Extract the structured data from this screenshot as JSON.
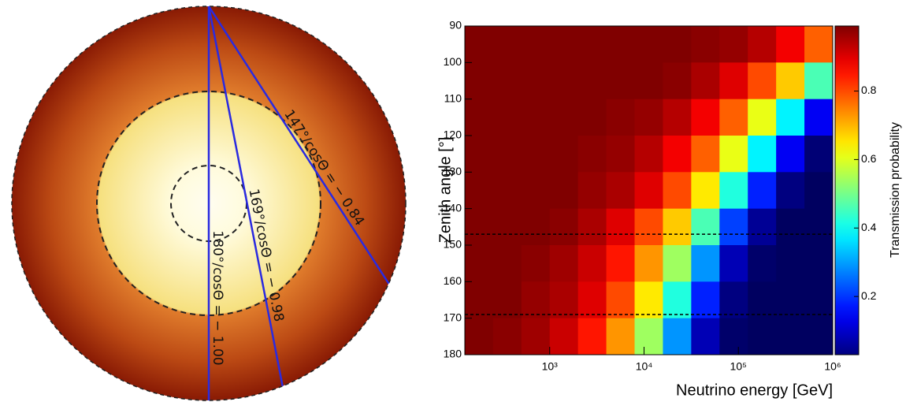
{
  "chart_data": [
    {
      "type": "earth",
      "chords": [
        {
          "zenith": 147,
          "label": "147°/cosΘ = − 0.84"
        },
        {
          "zenith": 169,
          "label": "169°/cosΘ = − 0.98"
        },
        {
          "zenith": 180,
          "label": "180°/cosΘ = − 1.00"
        }
      ],
      "chord_color": "#2a2ae0"
    },
    {
      "type": "heatmap",
      "xlabel": "Neutrino energy [GeV]",
      "ylabel": "Zenith angle [°]",
      "colorbar_label": "Transmission probability",
      "xscale": "log",
      "xlim": [
        126,
        1000000
      ],
      "xticks": [
        {
          "value": 1000,
          "label": "10³"
        },
        {
          "value": 10000,
          "label": "10⁴"
        },
        {
          "value": 100000,
          "label": "10⁵"
        },
        {
          "value": 1000000,
          "label": "10⁶"
        }
      ],
      "ylim": [
        90,
        180
      ],
      "y_inverted": true,
      "yticks": [
        90,
        100,
        110,
        120,
        130,
        140,
        150,
        160,
        170,
        180
      ],
      "clim": [
        0.03,
        0.99
      ],
      "cticks": [
        0.2,
        0.4,
        0.6,
        0.8
      ],
      "colormap": "jet",
      "xbins": [
        126,
        251,
        501,
        1000,
        1995,
        3981,
        7943,
        15849,
        31623,
        63096,
        125893,
        251189,
        501187,
        1000000
      ],
      "ybins": [
        90,
        100,
        110,
        120,
        130,
        140,
        150,
        160,
        170,
        180
      ],
      "values": [
        [
          0.99,
          0.99,
          0.99,
          0.99,
          0.99,
          0.99,
          0.99,
          0.99,
          0.98,
          0.97,
          0.94,
          0.88,
          0.78
        ],
        [
          0.99,
          0.99,
          0.99,
          0.99,
          0.99,
          0.99,
          0.99,
          0.98,
          0.95,
          0.9,
          0.8,
          0.68,
          0.46
        ],
        [
          0.99,
          0.99,
          0.99,
          0.99,
          0.99,
          0.98,
          0.97,
          0.94,
          0.88,
          0.78,
          0.61,
          0.38,
          0.14
        ],
        [
          0.99,
          0.99,
          0.99,
          0.99,
          0.98,
          0.97,
          0.94,
          0.88,
          0.78,
          0.61,
          0.38,
          0.14,
          0.02
        ],
        [
          0.99,
          0.99,
          0.99,
          0.99,
          0.97,
          0.95,
          0.9,
          0.8,
          0.65,
          0.42,
          0.18,
          0.03,
          0
        ],
        [
          0.99,
          0.99,
          0.99,
          0.98,
          0.95,
          0.9,
          0.8,
          0.68,
          0.46,
          0.21,
          0.05,
          0,
          0
        ],
        [
          0.99,
          0.99,
          0.98,
          0.96,
          0.92,
          0.85,
          0.73,
          0.54,
          0.29,
          0.08,
          0.01,
          0,
          0
        ],
        [
          0.99,
          0.99,
          0.97,
          0.95,
          0.9,
          0.8,
          0.65,
          0.42,
          0.18,
          0.03,
          0,
          0,
          0
        ],
        [
          0.99,
          0.98,
          0.96,
          0.92,
          0.85,
          0.73,
          0.54,
          0.29,
          0.08,
          0.01,
          0,
          0,
          0
        ]
      ],
      "hlines": [
        147,
        169
      ]
    }
  ]
}
